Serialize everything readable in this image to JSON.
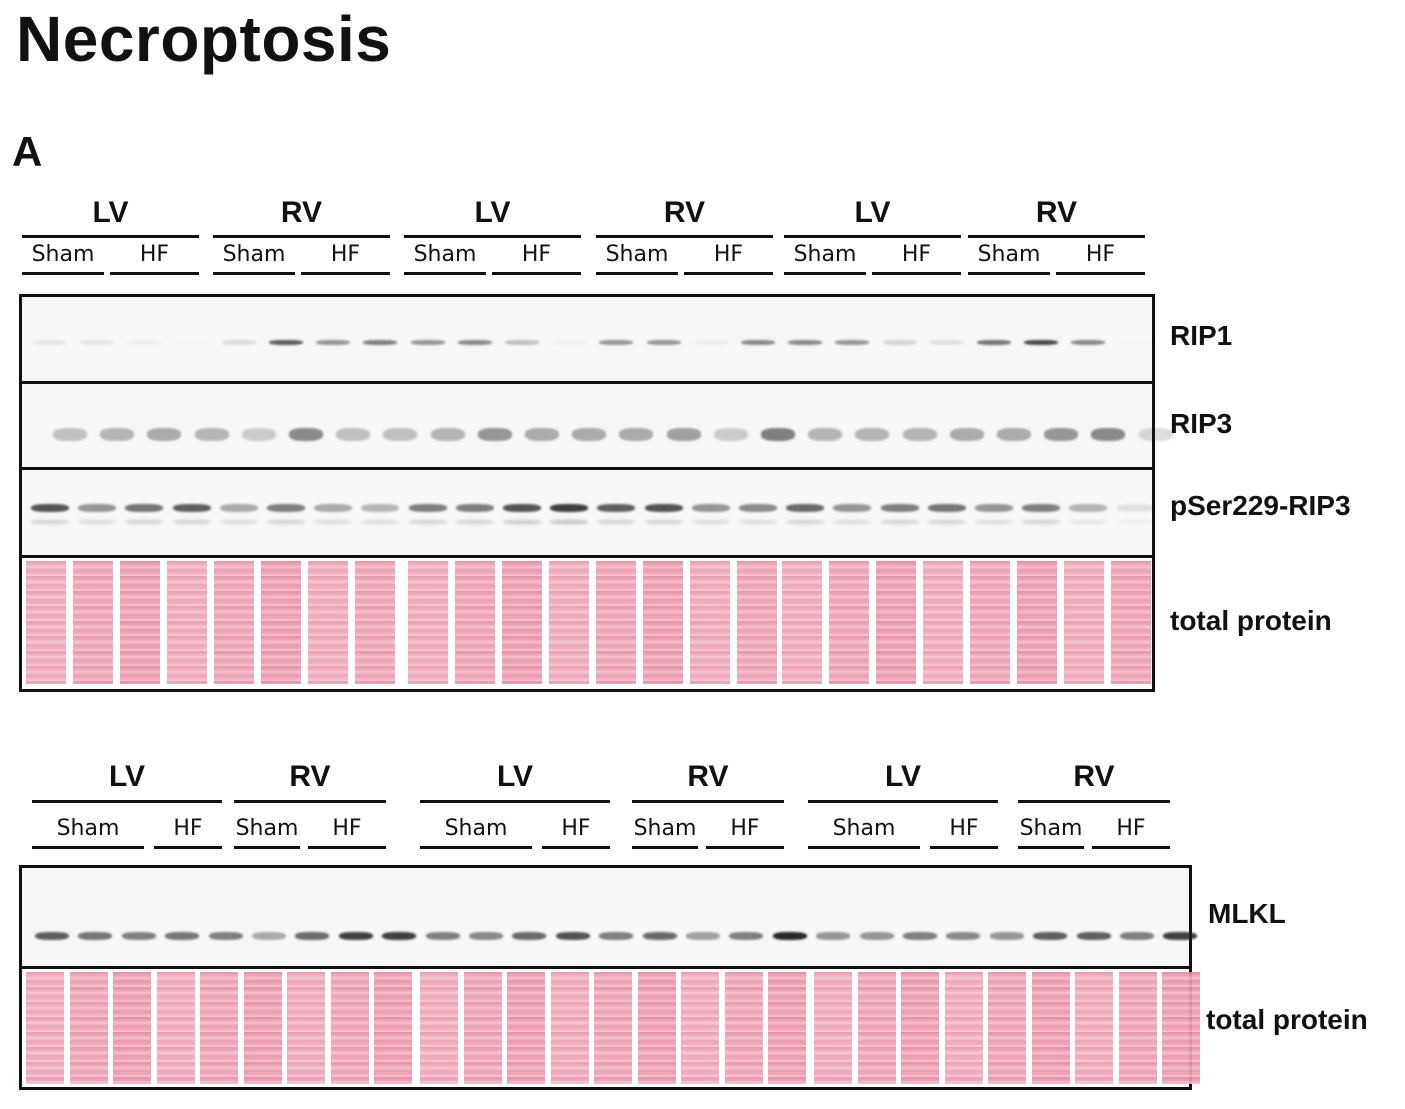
{
  "title": "Necroptosis",
  "panel_letter": "A",
  "top_blot": {
    "groups": [
      {
        "label": "LV",
        "subs": [
          "Sham",
          "HF"
        ]
      },
      {
        "label": "RV",
        "subs": [
          "Sham",
          "HF"
        ]
      },
      {
        "label": "LV",
        "subs": [
          "Sham",
          "HF"
        ]
      },
      {
        "label": "RV",
        "subs": [
          "Sham",
          "HF"
        ]
      },
      {
        "label": "LV",
        "subs": [
          "Sham",
          "HF"
        ]
      },
      {
        "label": "RV",
        "subs": [
          "Sham",
          "HF"
        ]
      }
    ],
    "rows": [
      {
        "label": "RIP1"
      },
      {
        "label": "RIP3"
      },
      {
        "label": "pSer229-RIP3"
      },
      {
        "label": "total protein"
      }
    ]
  },
  "bottom_blot": {
    "groups": [
      {
        "label": "LV",
        "subs": [
          "Sham",
          "HF"
        ]
      },
      {
        "label": "RV",
        "subs": [
          "Sham",
          "HF"
        ]
      },
      {
        "label": "LV",
        "subs": [
          "Sham",
          "HF"
        ]
      },
      {
        "label": "RV",
        "subs": [
          "Sham",
          "HF"
        ]
      },
      {
        "label": "LV",
        "subs": [
          "Sham",
          "HF"
        ]
      },
      {
        "label": "RV",
        "subs": [
          "Sham",
          "HF"
        ]
      }
    ],
    "rows": [
      {
        "label": "MLKL"
      },
      {
        "label": "total protein"
      }
    ]
  }
}
